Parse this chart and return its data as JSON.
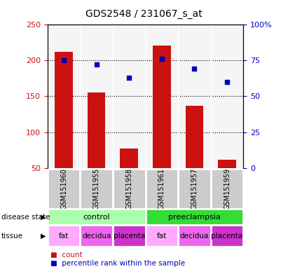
{
  "title": "GDS2548 / 231067_s_at",
  "samples": [
    "GSM151960",
    "GSM151955",
    "GSM151958",
    "GSM151961",
    "GSM151957",
    "GSM151959"
  ],
  "counts": [
    212,
    155,
    77,
    220,
    137,
    62
  ],
  "percentiles": [
    75,
    72,
    63,
    76,
    69,
    60
  ],
  "ylim_left": [
    50,
    250
  ],
  "ylim_right": [
    0,
    100
  ],
  "yticks_left": [
    50,
    100,
    150,
    200,
    250
  ],
  "yticks_right": [
    0,
    25,
    50,
    75,
    100
  ],
  "bar_color": "#cc1111",
  "dot_color": "#0000bb",
  "disease_states": [
    {
      "label": "control",
      "span": [
        0,
        3
      ],
      "color": "#aaffaa"
    },
    {
      "label": "preeclampsia",
      "span": [
        3,
        6
      ],
      "color": "#33dd33"
    }
  ],
  "tissues": [
    {
      "label": "fat",
      "span": [
        0,
        1
      ],
      "color": "#ffaaff"
    },
    {
      "label": "decidua",
      "span": [
        1,
        2
      ],
      "color": "#ee66ee"
    },
    {
      "label": "placenta",
      "span": [
        2,
        3
      ],
      "color": "#cc33cc"
    },
    {
      "label": "fat",
      "span": [
        3,
        4
      ],
      "color": "#ffaaff"
    },
    {
      "label": "decidua",
      "span": [
        4,
        5
      ],
      "color": "#ee66ee"
    },
    {
      "label": "placenta",
      "span": [
        5,
        6
      ],
      "color": "#cc33cc"
    }
  ],
  "tick_label_color_left": "#cc1111",
  "tick_label_color_right": "#0000bb",
  "background_color": "#ffffff",
  "sample_area_color": "#cccccc",
  "plot_bg_color": "#f5f5f5"
}
